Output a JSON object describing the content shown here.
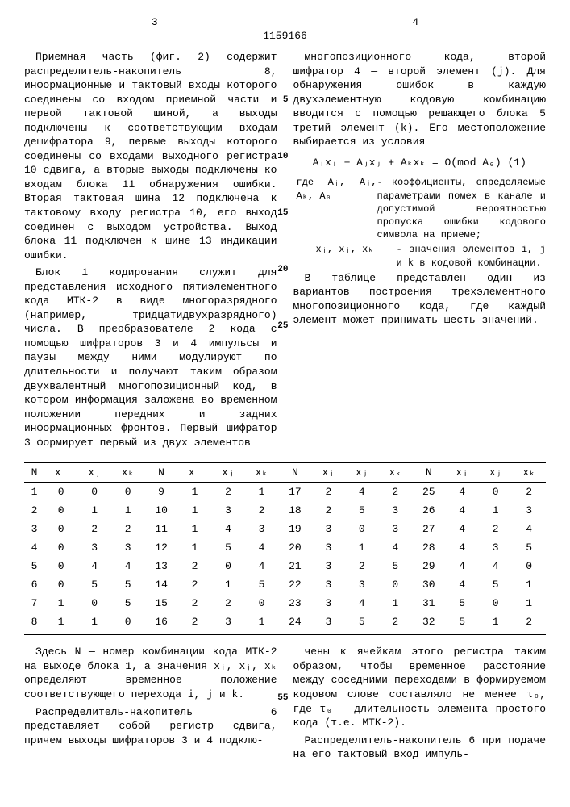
{
  "meta": {
    "page_left": "3",
    "page_right": "4",
    "doc_number": "1159166"
  },
  "left_col": {
    "p1": "Приемная часть (фиг. 2) содержит распределитель-накопитель 8, информационные и тактовый входы которого соединены со входом приемной части и первой тактовой шиной, а выходы подключены к соответствующим входам дешифратора 9, первые выходы которого соединены со входами выходного регистра 10 сдвига, а вторые выходы подключены ко входам блока 11 обнаружения ошибки. Вторая тактовая шина 12 подключена к тактовому входу регистра 10, его выход соединен с выходом устройства. Выход блока 11 подключен к шине 13 индикации ошибки.",
    "p2": "Блок 1 кодирования служит для представления исходного пятиэлементного кода МТК-2 в виде многоразрядного (например, тридцатидвухразрядного) числа. В преобразователе 2 кода с помощью шифраторов 3 и 4 импульсы и паузы между ними модулируют по длительности и получают таким образом двухвалентный многопозиционный код, в котором информация заложена во временном положении передних и задних информационных фронтов. Первый шифратор 3 формирует первый из двух элементов",
    "ln5": "5",
    "ln10": "10",
    "ln15": "15",
    "ln20": "20",
    "ln25": "25"
  },
  "right_col": {
    "p1": "многопозиционного кода, второй шифратор 4 — второй элемент (j). Для обнаружения ошибок в каждую двухэлементную кодовую комбинацию вводится с помощью решающего блока 5 третий элемент (k). Его местоположение выбирается из условия",
    "formula": "Aᵢxᵢ + Aⱼxⱼ + Aₖxₖ = O(mod A₀)  (1)",
    "where_lbl1": "где Aᵢ, Aⱼ, Aₖ, A₀",
    "where_txt1": "- коэффициенты, определяемые параметрами помех в канале и допустимой вероятностью пропуска ошибки кодового символа на приеме;",
    "where_lbl2": "xᵢ, xⱼ, xₖ",
    "where_txt2": "- значения элементов i, j и k в кодовой комбинации.",
    "p2": "В таблице представлен один из вариантов построения трехэлементного многопозиционного кода, где каждый элемент может принимать шесть значений."
  },
  "table": {
    "headers": [
      "N",
      "xᵢ",
      "xⱼ",
      "xₖ",
      "N",
      "xᵢ",
      "xⱼ",
      "xₖ",
      "N",
      "xᵢ",
      "xⱼ",
      "xₖ",
      "N",
      "xᵢ",
      "xⱼ",
      "xₖ"
    ],
    "rows": [
      [
        "1",
        "0",
        "0",
        "0",
        "9",
        "1",
        "2",
        "1",
        "17",
        "2",
        "4",
        "2",
        "25",
        "4",
        "0",
        "2"
      ],
      [
        "2",
        "0",
        "1",
        "1",
        "10",
        "1",
        "3",
        "2",
        "18",
        "2",
        "5",
        "3",
        "26",
        "4",
        "1",
        "3"
      ],
      [
        "3",
        "0",
        "2",
        "2",
        "11",
        "1",
        "4",
        "3",
        "19",
        "3",
        "0",
        "3",
        "27",
        "4",
        "2",
        "4"
      ],
      [
        "4",
        "0",
        "3",
        "3",
        "12",
        "1",
        "5",
        "4",
        "20",
        "3",
        "1",
        "4",
        "28",
        "4",
        "3",
        "5"
      ],
      [
        "5",
        "0",
        "4",
        "4",
        "13",
        "2",
        "0",
        "4",
        "21",
        "3",
        "2",
        "5",
        "29",
        "4",
        "4",
        "0"
      ],
      [
        "6",
        "0",
        "5",
        "5",
        "14",
        "2",
        "1",
        "5",
        "22",
        "3",
        "3",
        "0",
        "30",
        "4",
        "5",
        "1"
      ],
      [
        "7",
        "1",
        "0",
        "5",
        "15",
        "2",
        "2",
        "0",
        "23",
        "3",
        "4",
        "1",
        "31",
        "5",
        "0",
        "1"
      ],
      [
        "8",
        "1",
        "1",
        "0",
        "16",
        "2",
        "3",
        "1",
        "24",
        "3",
        "5",
        "2",
        "32",
        "5",
        "1",
        "2"
      ]
    ]
  },
  "bottom_left": {
    "p1": "Здесь N — номер комбинации кода МТК-2 на выходе блока 1, а значения xᵢ, xⱼ, xₖ определяют временное положение соответствующего перехода i, j и k.",
    "p2": "Распределитель-накопитель 6 представляет собой регистр сдвига, причем выходы шифраторов 3 и 4 подклю-",
    "ln55": "55"
  },
  "bottom_right": {
    "p1": "чены к ячейкам этого регистра таким образом, чтобы временное расстояние между соседними переходами в формируемом кодовом слове составляло не менее τ₀, где τ₀ — длительность элемента простого кода (т.е. МТК-2).",
    "p2": "Распределитель-накопитель 6 при подаче на его тактовый вход импуль-"
  }
}
